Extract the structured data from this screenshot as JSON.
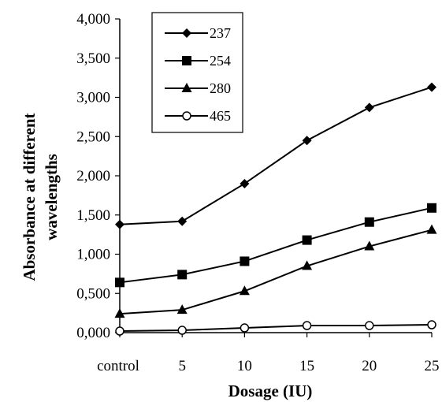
{
  "chart_data": {
    "type": "line",
    "title": "",
    "xlabel": "Dosage (IU)",
    "ylabel_lines": [
      "Absorbance at different",
      "wavelengths"
    ],
    "categories": [
      "control",
      "5",
      "10",
      "15",
      "20",
      "25"
    ],
    "y_ticks": [
      "0,000",
      "0,500",
      "1,000",
      "1,500",
      "2,000",
      "2,500",
      "3,000",
      "3,500",
      "4,000"
    ],
    "ylim": [
      0,
      4
    ],
    "grid": false,
    "legend_placement": "top-left",
    "series": [
      {
        "name": "237",
        "marker": "diamond",
        "values": [
          1.38,
          1.42,
          1.9,
          2.45,
          2.87,
          3.13
        ]
      },
      {
        "name": "254",
        "marker": "square",
        "values": [
          0.64,
          0.74,
          0.91,
          1.18,
          1.41,
          1.59
        ]
      },
      {
        "name": "280",
        "marker": "triangle",
        "values": [
          0.24,
          0.29,
          0.53,
          0.85,
          1.1,
          1.31
        ]
      },
      {
        "name": "465",
        "marker": "circle",
        "values": [
          0.02,
          0.03,
          0.06,
          0.09,
          0.09,
          0.1
        ]
      }
    ]
  }
}
